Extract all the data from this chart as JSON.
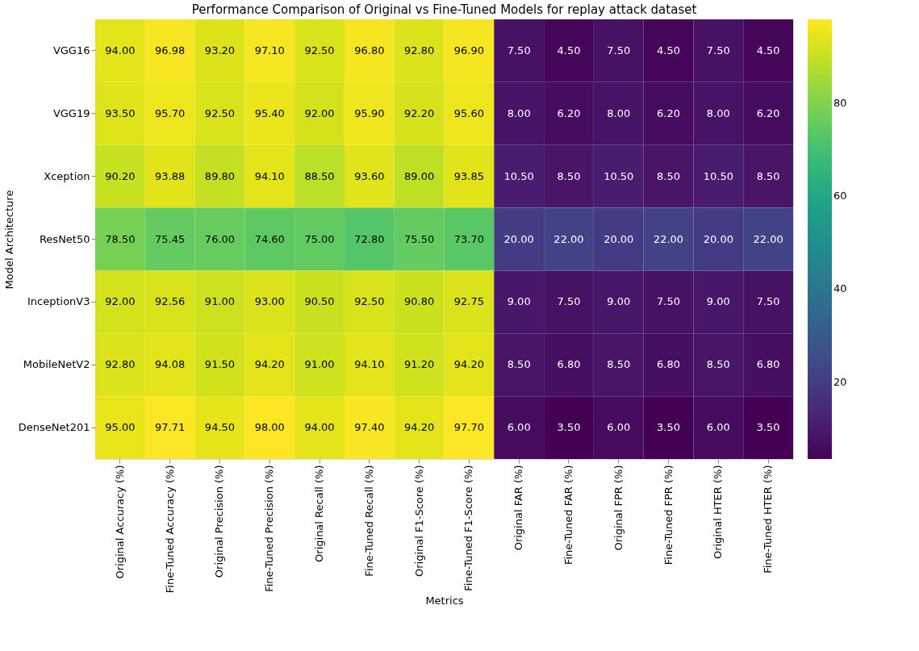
{
  "chart_data": {
    "type": "heatmap",
    "title": "Performance Comparison of Original vs Fine-Tuned Models for replay attack dataset",
    "xlabel": "Metrics",
    "ylabel": "Model Architecture",
    "categories": [
      "Original Accuracy (%)",
      "Fine-Tuned Accuracy (%)",
      "Original Precision (%)",
      "Fine-Tuned Precision (%)",
      "Original Recall (%)",
      "Fine-Tuned Recall (%)",
      "Original F1-Score (%)",
      "Fine-Tuned F1-Score (%)",
      "Original FAR (%)",
      "Fine-Tuned FAR (%)",
      "Original FPR (%)",
      "Fine-Tuned FPR (%)",
      "Original HTER (%)",
      "Fine-Tuned HTER (%)"
    ],
    "y_categories": [
      "VGG16",
      "VGG19",
      "Xception",
      "ResNet50",
      "InceptionV3",
      "MobileNetV2",
      "DenseNet201"
    ],
    "cells": [
      [
        94.0,
        96.98,
        93.2,
        97.1,
        92.5,
        96.8,
        92.8,
        96.9,
        7.5,
        4.5,
        7.5,
        4.5,
        7.5,
        4.5
      ],
      [
        93.5,
        95.7,
        92.5,
        95.4,
        92.0,
        95.9,
        92.2,
        95.6,
        8.0,
        6.2,
        8.0,
        6.2,
        8.0,
        6.2
      ],
      [
        90.2,
        93.88,
        89.8,
        94.1,
        88.5,
        93.6,
        89.0,
        93.85,
        10.5,
        8.5,
        10.5,
        8.5,
        10.5,
        8.5
      ],
      [
        78.5,
        75.45,
        76.0,
        74.6,
        75.0,
        72.8,
        75.5,
        73.7,
        20.0,
        22.0,
        20.0,
        22.0,
        20.0,
        22.0
      ],
      [
        92.0,
        92.56,
        91.0,
        93.0,
        90.5,
        92.5,
        90.8,
        92.75,
        9.0,
        7.5,
        9.0,
        7.5,
        9.0,
        7.5
      ],
      [
        92.8,
        94.08,
        91.5,
        94.2,
        91.0,
        94.1,
        91.2,
        94.2,
        8.5,
        6.8,
        8.5,
        6.8,
        8.5,
        6.8
      ],
      [
        95.0,
        97.71,
        94.5,
        98.0,
        94.0,
        97.4,
        94.2,
        97.7,
        6.0,
        3.5,
        6.0,
        3.5,
        6.0,
        3.5
      ]
    ],
    "cell_labels": [
      [
        "94.00",
        "96.98",
        "93.20",
        "97.10",
        "92.50",
        "96.80",
        "92.80",
        "96.90",
        "7.50",
        "4.50",
        "7.50",
        "4.50",
        "7.50",
        "4.50"
      ],
      [
        "93.50",
        "95.70",
        "92.50",
        "95.40",
        "92.00",
        "95.90",
        "92.20",
        "95.60",
        "8.00",
        "6.20",
        "8.00",
        "6.20",
        "8.00",
        "6.20"
      ],
      [
        "90.20",
        "93.88",
        "89.80",
        "94.10",
        "88.50",
        "93.60",
        "89.00",
        "93.85",
        "10.50",
        "8.50",
        "10.50",
        "8.50",
        "10.50",
        "8.50"
      ],
      [
        "78.50",
        "75.45",
        "76.00",
        "74.60",
        "75.00",
        "72.80",
        "75.50",
        "73.70",
        "20.00",
        "22.00",
        "20.00",
        "22.00",
        "20.00",
        "22.00"
      ],
      [
        "92.00",
        "92.56",
        "91.00",
        "93.00",
        "90.50",
        "92.50",
        "90.80",
        "92.75",
        "9.00",
        "7.50",
        "9.00",
        "7.50",
        "9.00",
        "7.50"
      ],
      [
        "92.80",
        "94.08",
        "91.50",
        "94.20",
        "91.00",
        "94.10",
        "91.20",
        "94.20",
        "8.50",
        "6.80",
        "8.50",
        "6.80",
        "8.50",
        "6.80"
      ],
      [
        "95.00",
        "97.71",
        "94.50",
        "98.00",
        "94.00",
        "97.40",
        "94.20",
        "97.70",
        "6.00",
        "3.50",
        "6.00",
        "3.50",
        "6.00",
        "3.50"
      ]
    ],
    "clim": [
      3.5,
      98
    ],
    "cticks": [
      20,
      40,
      60,
      80
    ]
  }
}
